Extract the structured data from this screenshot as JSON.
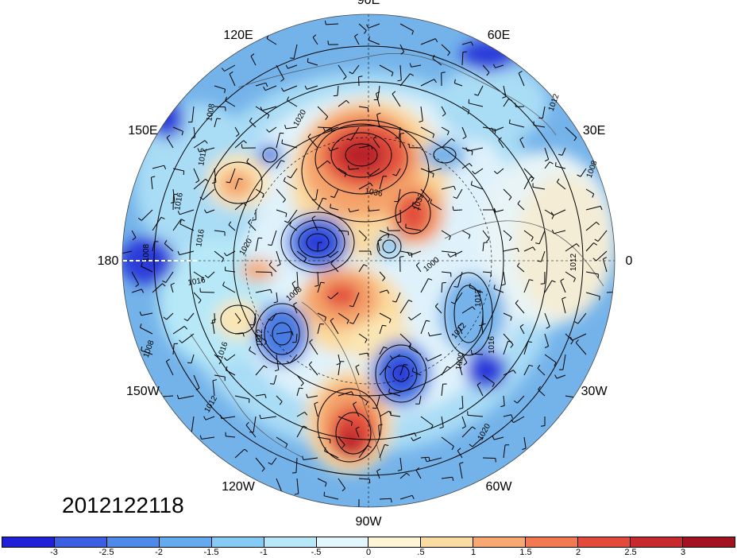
{
  "map": {
    "projection": "north polar stereographic",
    "longitude_labels": [
      {
        "text": "90E",
        "lon_deg": 90
      },
      {
        "text": "60E",
        "lon_deg": 60
      },
      {
        "text": "30E",
        "lon_deg": 30
      },
      {
        "text": "0",
        "lon_deg": 0
      },
      {
        "text": "30W",
        "lon_deg": -30
      },
      {
        "text": "60W",
        "lon_deg": -60
      },
      {
        "text": "90W",
        "lon_deg": -90
      },
      {
        "text": "120W",
        "lon_deg": -120
      },
      {
        "text": "150W",
        "lon_deg": -150
      },
      {
        "text": "180",
        "lon_deg": 180
      },
      {
        "text": "150E",
        "lon_deg": 150
      },
      {
        "text": "120E",
        "lon_deg": 120
      }
    ],
    "contour_labels": [
      "1012",
      "1008",
      "1012",
      "1016",
      "1020",
      "1036",
      "1032",
      "1008",
      "1012",
      "1016",
      "1000",
      "1008",
      "1012",
      "1016",
      "1016",
      "1008",
      "1020",
      "1016",
      "1012",
      "1012",
      "1000",
      "1012",
      "1008",
      "1020"
    ],
    "fill_colors": {
      "background_blue": "#74b3ea",
      "light_blue": "#a9dcf5",
      "pale": "#dff2fb",
      "deep_blue": "#2a3bd9",
      "mid_blue": "#4a7be3",
      "warm_light": "#fbe6b3",
      "warm": "#f4a36a",
      "red": "#e3503c",
      "dark_red": "#b9222b"
    }
  },
  "timestamp": "2012122118",
  "colorbar": {
    "colors": [
      "#2020d8",
      "#3a5fe0",
      "#4e8be8",
      "#64aaee",
      "#86cbf5",
      "#b6e8f8",
      "#e3f6fb",
      "#fdf5d6",
      "#fbdca0",
      "#f7a971",
      "#f17a52",
      "#e34a3a",
      "#c72a2c",
      "#a3131f"
    ],
    "tick_labels": [
      "-3",
      "-2.5",
      "-2",
      "-1.5",
      "-1",
      "-.5",
      "0",
      ".5",
      "1",
      "1.5",
      "2",
      "2.5",
      "3"
    ],
    "tick_values": [
      -3,
      -2.5,
      -2,
      -1.5,
      -1,
      -0.5,
      0,
      0.5,
      1,
      1.5,
      2,
      2.5,
      3
    ]
  }
}
